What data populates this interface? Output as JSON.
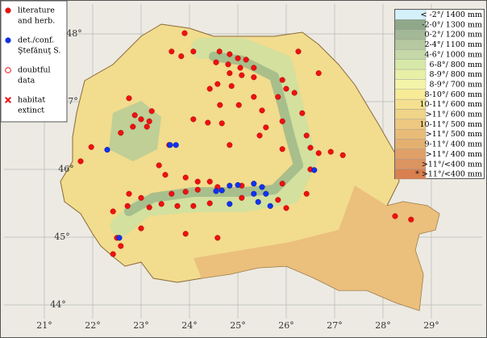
{
  "meridians": [
    {
      "value": 21,
      "label": "21°"
    },
    {
      "value": 22,
      "label": "22°"
    },
    {
      "value": 23,
      "label": "23°"
    },
    {
      "value": 24,
      "label": "24°"
    },
    {
      "value": 25,
      "label": "25°"
    },
    {
      "value": 26,
      "label": "26°"
    },
    {
      "value": 27,
      "label": "27°"
    },
    {
      "value": 28,
      "label": "28°"
    },
    {
      "value": 29,
      "label": "29°"
    }
  ],
  "parallels": [
    {
      "value": 48,
      "label": "48°"
    },
    {
      "value": 47,
      "label": "47°"
    },
    {
      "value": 46,
      "label": "46°"
    },
    {
      "value": 45,
      "label": "45°"
    },
    {
      "value": 44,
      "label": "44°"
    }
  ],
  "record_legend": [
    {
      "symbol": "literature",
      "lines": [
        "literature",
        "and herb."
      ]
    },
    {
      "symbol": "confirmed",
      "lines": [
        "det./conf.",
        "Ştefănuţ S."
      ]
    },
    {
      "symbol": "doubtful",
      "lines": [
        "doubtful",
        "data"
      ]
    },
    {
      "symbol": "extinct",
      "lines": [
        "habitat",
        "extinct"
      ]
    }
  ],
  "climate_legend": [
    {
      "label": "< -2°/ 1400 mm",
      "color": "#d4f0f8"
    },
    {
      "label": "-2-0°/ 1300 mm",
      "color": "#8fa88a"
    },
    {
      "label": "0-2°/ 1200 mm",
      "color": "#a3b896"
    },
    {
      "label": "2-4°/ 1100 mm",
      "color": "#b5c8a0"
    },
    {
      "label": "4-6°/ 1000 mm",
      "color": "#c5d8a8"
    },
    {
      "label": "6-8°/  800 mm",
      "color": "#d8e8a8"
    },
    {
      "label": "8-9°/  800 mm",
      "color": "#e8f0a8"
    },
    {
      "label": "8-9°/  700 mm",
      "color": "#f4f4a8"
    },
    {
      "label": "8-10°/  600 mm",
      "color": "#f8eb98"
    },
    {
      "label": "10-11°/  600 mm",
      "color": "#f4e090"
    },
    {
      "label": ">11°/  600 mm",
      "color": "#f0d488"
    },
    {
      "label": "10-11°/  500 mm",
      "color": "#ecc880"
    },
    {
      "label": ">11°/  500 mm",
      "color": "#e8bc78"
    },
    {
      "label": "9-11°/  400 mm",
      "color": "#e4b070"
    },
    {
      "label": ">11°/  400 mm",
      "color": "#e0a068"
    },
    {
      "label": ">11°/<400 mm",
      "color": "#dc9460"
    },
    {
      "label": "* >11°/<400 mm",
      "color": "#d88050"
    }
  ],
  "points": {
    "literature": [
      [
        23.9,
        48.01
      ],
      [
        23.63,
        47.74
      ],
      [
        24.08,
        47.74
      ],
      [
        24.62,
        47.74
      ],
      [
        24.83,
        47.7
      ],
      [
        25.0,
        47.64
      ],
      [
        25.17,
        47.62
      ],
      [
        24.55,
        47.58
      ],
      [
        24.8,
        47.55
      ],
      [
        25.05,
        47.5
      ],
      [
        25.33,
        47.5
      ],
      [
        26.25,
        47.74
      ],
      [
        26.67,
        47.42
      ],
      [
        25.92,
        47.32
      ],
      [
        24.83,
        47.42
      ],
      [
        25.08,
        47.39
      ],
      [
        25.33,
        47.36
      ],
      [
        24.58,
        47.26
      ],
      [
        24.87,
        47.23
      ],
      [
        26.0,
        47.19
      ],
      [
        26.17,
        47.13
      ],
      [
        25.83,
        47.07
      ],
      [
        24.63,
        46.95
      ],
      [
        25.02,
        46.95
      ],
      [
        25.5,
        46.87
      ],
      [
        26.33,
        46.83
      ],
      [
        25.92,
        46.71
      ],
      [
        25.58,
        46.62
      ],
      [
        22.75,
        47.05
      ],
      [
        22.87,
        46.8
      ],
      [
        23.0,
        46.74
      ],
      [
        23.12,
        46.63
      ],
      [
        22.83,
        46.63
      ],
      [
        22.58,
        46.54
      ],
      [
        23.22,
        46.86
      ],
      [
        24.08,
        46.74
      ],
      [
        24.38,
        46.69
      ],
      [
        24.67,
        46.68
      ],
      [
        25.45,
        46.5
      ],
      [
        26.42,
        46.5
      ],
      [
        26.5,
        46.32
      ],
      [
        26.67,
        46.24
      ],
      [
        25.92,
        46.3
      ],
      [
        26.92,
        46.26
      ],
      [
        21.97,
        46.33
      ],
      [
        23.58,
        46.36
      ],
      [
        24.83,
        46.36
      ],
      [
        23.37,
        46.06
      ],
      [
        23.5,
        45.92
      ],
      [
        23.92,
        45.88
      ],
      [
        24.17,
        45.82
      ],
      [
        24.42,
        45.82
      ],
      [
        24.58,
        45.74
      ],
      [
        25.08,
        45.76
      ],
      [
        25.92,
        45.79
      ],
      [
        26.42,
        45.64
      ],
      [
        22.75,
        45.64
      ],
      [
        23.0,
        45.58
      ],
      [
        23.17,
        45.44
      ],
      [
        22.72,
        45.46
      ],
      [
        22.42,
        45.38
      ],
      [
        23.42,
        45.49
      ],
      [
        23.75,
        45.46
      ],
      [
        24.08,
        45.46
      ],
      [
        24.42,
        45.5
      ],
      [
        25.08,
        45.58
      ],
      [
        25.83,
        45.55
      ],
      [
        26.0,
        45.43
      ],
      [
        23.0,
        45.13
      ],
      [
        23.92,
        45.05
      ],
      [
        24.58,
        44.99
      ],
      [
        22.5,
        44.99
      ],
      [
        22.58,
        44.87
      ],
      [
        22.42,
        44.75
      ],
      [
        28.25,
        45.31
      ],
      [
        28.58,
        45.26
      ],
      [
        27.17,
        46.21
      ],
      [
        26.5,
        46.0
      ],
      [
        23.63,
        45.64
      ],
      [
        23.92,
        45.67
      ],
      [
        24.17,
        45.7
      ],
      [
        23.17,
        46.71
      ],
      [
        21.75,
        46.12
      ],
      [
        23.83,
        47.67
      ],
      [
        24.42,
        47.19
      ],
      [
        25.33,
        47.07
      ]
    ],
    "confirmed": [
      [
        22.3,
        46.29
      ],
      [
        23.6,
        46.36
      ],
      [
        23.72,
        46.36
      ],
      [
        26.58,
        45.99
      ],
      [
        24.67,
        45.69
      ],
      [
        24.83,
        45.76
      ],
      [
        25.0,
        45.77
      ],
      [
        25.33,
        45.79
      ],
      [
        25.5,
        45.74
      ],
      [
        25.33,
        45.64
      ],
      [
        25.58,
        45.64
      ],
      [
        25.42,
        45.52
      ],
      [
        25.67,
        45.46
      ],
      [
        24.83,
        45.49
      ],
      [
        24.55,
        45.68
      ],
      [
        22.55,
        44.99
      ]
    ]
  }
}
